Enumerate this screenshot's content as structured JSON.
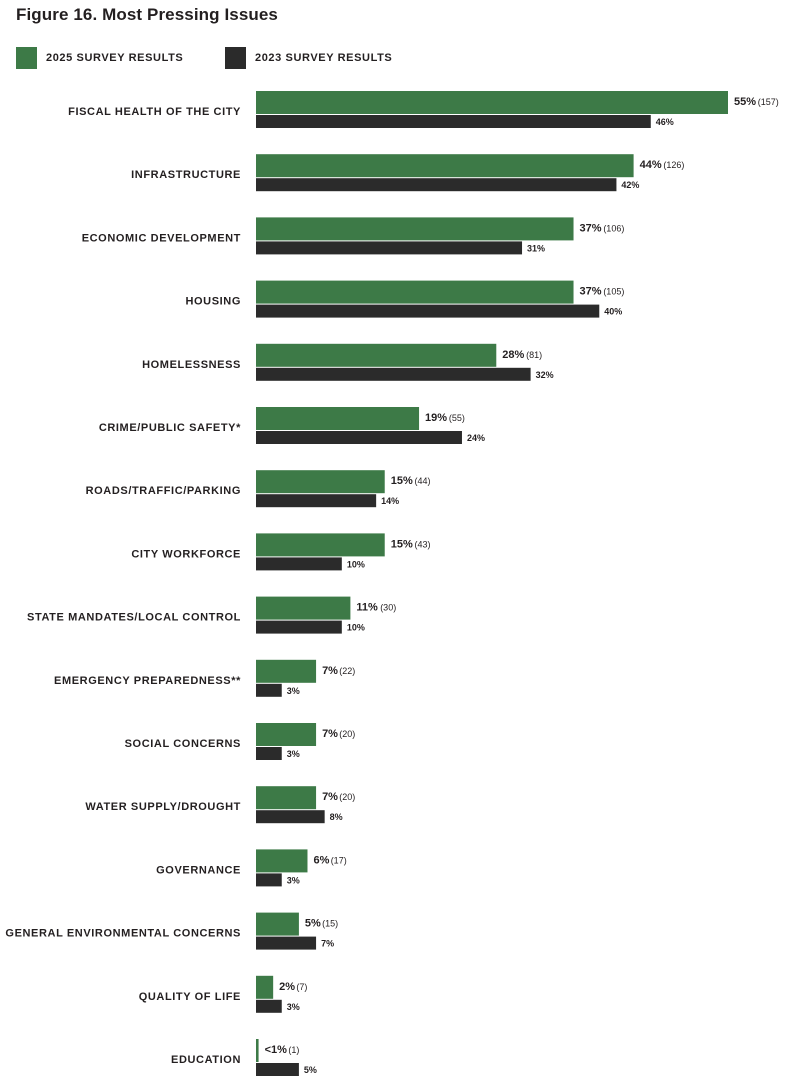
{
  "title": "Figure 16. Most Pressing Issues",
  "colors": {
    "series_2025": "#3d7a47",
    "series_2023": "#2b2b2b",
    "text": "#231f20"
  },
  "chart_data": {
    "type": "bar",
    "orientation": "horizontal",
    "title": "Figure 16. Most Pressing Issues",
    "legend_placement": "top-left",
    "grid": false,
    "xlim": [
      0,
      55
    ],
    "categories": [
      "FISCAL HEALTH OF THE CITY",
      "INFRASTRUCTURE",
      "ECONOMIC DEVELOPMENT",
      "HOUSING",
      "HOMELESSNESS",
      "CRIME/PUBLIC SAFETY*",
      "ROADS/TRAFFIC/PARKING",
      "CITY WORKFORCE",
      "STATE MANDATES/LOCAL CONTROL",
      "EMERGENCY PREPAREDNESS**",
      "SOCIAL CONCERNS",
      "WATER SUPPLY/DROUGHT",
      "GOVERNANCE",
      "GENERAL ENVIRONMENTAL CONCERNS",
      "QUALITY OF LIFE",
      "EDUCATION"
    ],
    "series": [
      {
        "name": "2025 SURVEY RESULTS",
        "values": [
          55,
          44,
          37,
          37,
          28,
          19,
          15,
          15,
          11,
          7,
          7,
          7,
          6,
          5,
          2,
          0.3
        ],
        "labels": [
          "55%",
          "44%",
          "37%",
          "37%",
          "28%",
          "19%",
          "15%",
          "15%",
          "11%",
          "7%",
          "7%",
          "7%",
          "6%",
          "5%",
          "2%",
          "<1%"
        ],
        "counts": [
          "(157)",
          "(126)",
          "(106)",
          "(105)",
          "(81)",
          "(55)",
          "(44)",
          "(43)",
          "(30)",
          "(22)",
          "(20)",
          "(20)",
          "(17)",
          "(15)",
          "(7)",
          "(1)"
        ]
      },
      {
        "name": "2023 SURVEY RESULTS",
        "values": [
          46,
          42,
          31,
          40,
          32,
          24,
          14,
          10,
          10,
          3,
          3,
          8,
          3,
          7,
          3,
          5
        ],
        "labels": [
          "46%",
          "42%",
          "31%",
          "40%",
          "32%",
          "24%",
          "14%",
          "10%",
          "10%",
          "3%",
          "3%",
          "8%",
          "3%",
          "7%",
          "3%",
          "5%"
        ]
      }
    ]
  }
}
